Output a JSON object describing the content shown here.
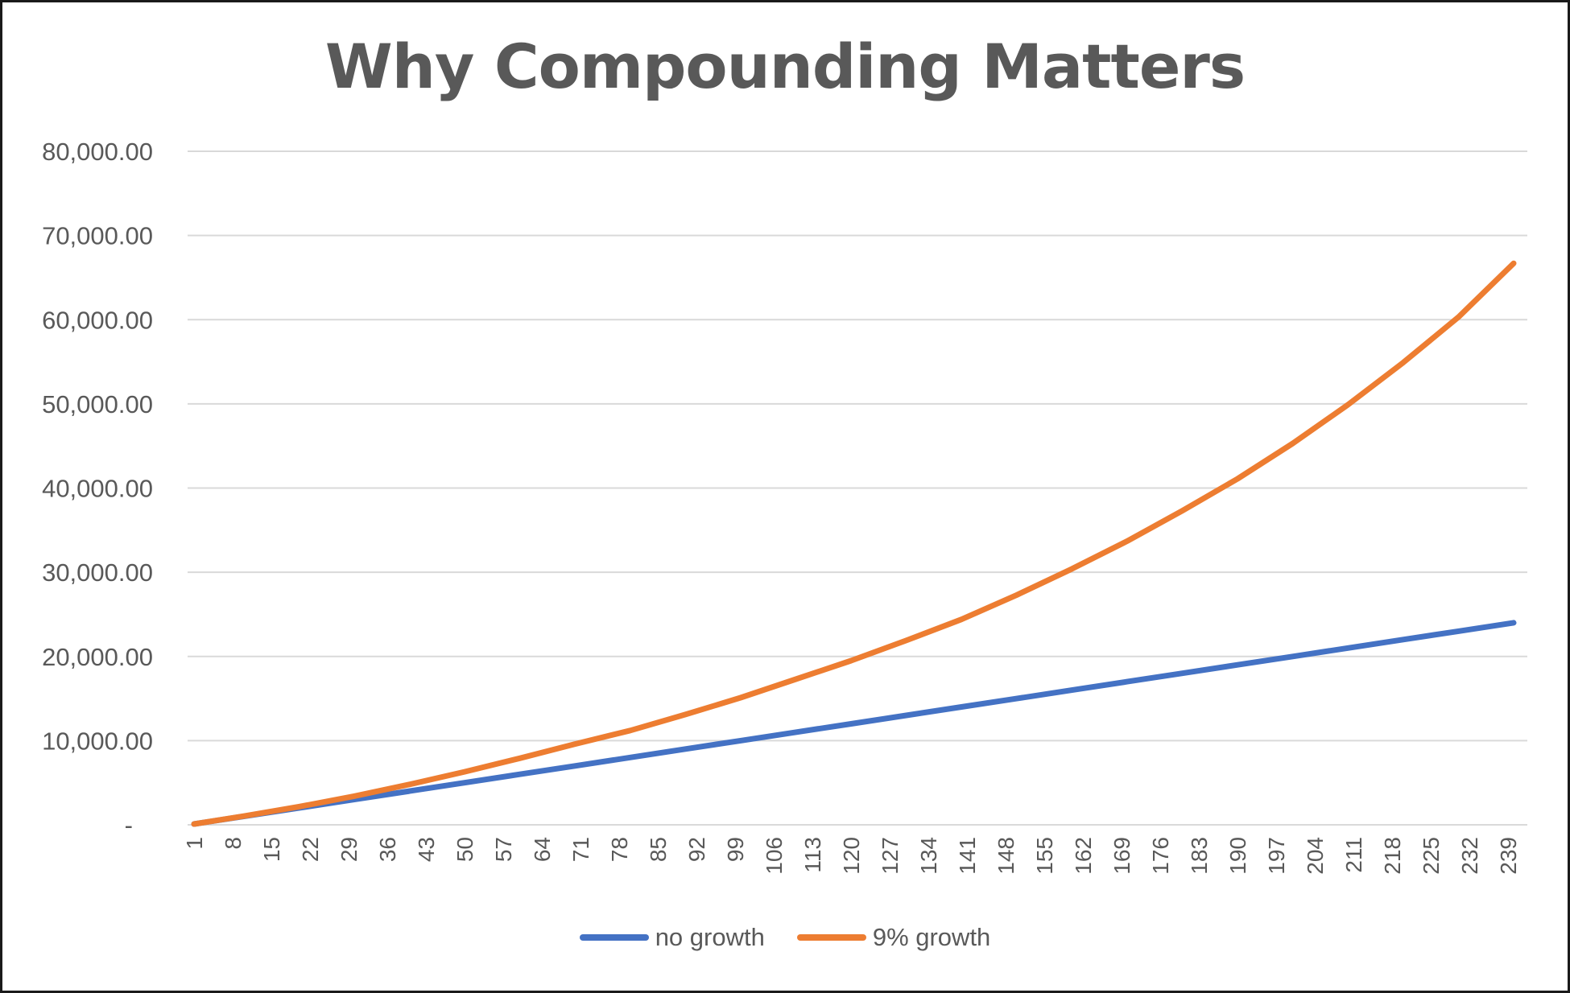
{
  "chart_data": {
    "type": "line",
    "title": "Why Compounding Matters",
    "xlabel": "",
    "ylabel": "",
    "x_range": [
      1,
      240
    ],
    "ylim": [
      0,
      80000
    ],
    "y_ticks": [
      {
        "value": 0,
        "label": "-"
      },
      {
        "value": 10000,
        "label": "10,000.00"
      },
      {
        "value": 20000,
        "label": "20,000.00"
      },
      {
        "value": 30000,
        "label": "30,000.00"
      },
      {
        "value": 40000,
        "label": "40,000.00"
      },
      {
        "value": 50000,
        "label": "50,000.00"
      },
      {
        "value": 60000,
        "label": "60,000.00"
      },
      {
        "value": 70000,
        "label": "70,000.00"
      },
      {
        "value": 80000,
        "label": "80,000.00"
      }
    ],
    "x_ticks": [
      1,
      8,
      15,
      22,
      29,
      36,
      43,
      50,
      57,
      64,
      71,
      78,
      85,
      92,
      99,
      106,
      113,
      120,
      127,
      134,
      141,
      148,
      155,
      162,
      169,
      176,
      183,
      190,
      197,
      204,
      211,
      218,
      225,
      232,
      239
    ],
    "grid": true,
    "legend_position": "bottom",
    "series": [
      {
        "name": "no growth",
        "color": "#4472c4",
        "x": [
          1,
          10,
          20,
          30,
          40,
          50,
          60,
          70,
          80,
          90,
          100,
          110,
          120,
          130,
          140,
          150,
          160,
          170,
          180,
          190,
          200,
          210,
          220,
          230,
          240
        ],
        "y": [
          100,
          1000,
          2000,
          3000,
          4000,
          5000,
          6000,
          7000,
          8000,
          9000,
          10000,
          11000,
          12000,
          13000,
          14000,
          15000,
          16000,
          17000,
          18000,
          19000,
          20000,
          21000,
          22000,
          23000,
          24000
        ]
      },
      {
        "name": "9% growth",
        "color": "#ed7d31",
        "x": [
          1,
          10,
          20,
          30,
          40,
          50,
          60,
          70,
          80,
          90,
          100,
          110,
          120,
          130,
          140,
          150,
          160,
          170,
          180,
          190,
          200,
          210,
          220,
          230,
          240
        ],
        "y": [
          100,
          1030,
          2150,
          3400,
          4800,
          6300,
          7900,
          9600,
          11200,
          13100,
          15100,
          17300,
          19500,
          21900,
          24400,
          27300,
          30400,
          33700,
          37300,
          41100,
          45300,
          49900,
          54900,
          60300,
          66700
        ]
      }
    ]
  }
}
